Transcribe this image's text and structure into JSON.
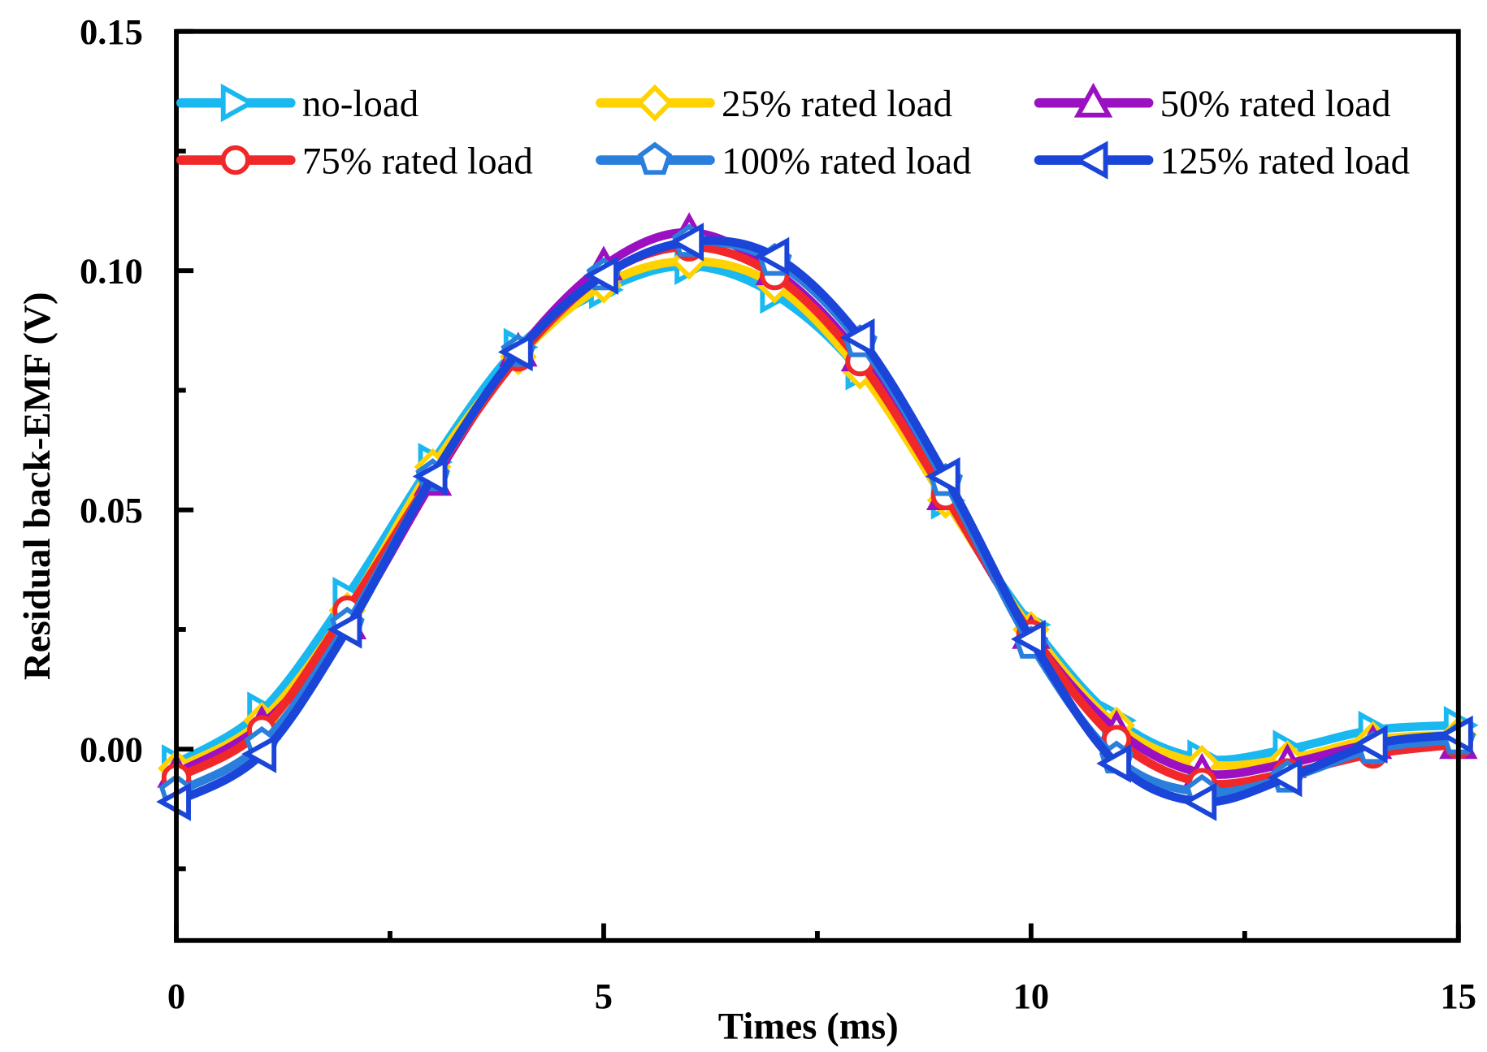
{
  "chart_data": {
    "type": "line",
    "title": "",
    "xlabel": "Times (ms)",
    "ylabel": "Residual back-EMF (V)",
    "xlim": [
      0,
      15
    ],
    "ylim": [
      -0.04,
      0.15
    ],
    "xticks": [
      0,
      5,
      10,
      15
    ],
    "xtick_labels": [
      "0",
      "5",
      "10",
      "15"
    ],
    "yticks": [
      0.0,
      0.05,
      0.1,
      0.15
    ],
    "ytick_labels": [
      "0.00",
      "0.05",
      "0.10",
      "0.15"
    ],
    "grid": false,
    "legend_placement": "top",
    "x": [
      0,
      1,
      2,
      3,
      4,
      5,
      6,
      7,
      8,
      9,
      10,
      11,
      12,
      13,
      14,
      15
    ],
    "series": [
      {
        "name": "no-load",
        "color": "#1ab8f0",
        "marker": "triangle-right",
        "values": [
          -0.003,
          0.008,
          0.032,
          0.06,
          0.084,
          0.096,
          0.101,
          0.095,
          0.079,
          0.052,
          0.026,
          0.006,
          -0.002,
          0.0,
          0.004,
          0.005
        ]
      },
      {
        "name": "25% rated load",
        "color": "#ffd200",
        "marker": "diamond",
        "values": [
          -0.004,
          0.006,
          0.029,
          0.059,
          0.082,
          0.097,
          0.102,
          0.097,
          0.079,
          0.052,
          0.025,
          0.005,
          -0.003,
          -0.002,
          0.002,
          0.003
        ]
      },
      {
        "name": "50% rated load",
        "color": "#9b10c0",
        "marker": "triangle-up",
        "values": [
          -0.005,
          0.005,
          0.026,
          0.056,
          0.083,
          0.101,
          0.108,
          0.1,
          0.082,
          0.053,
          0.024,
          0.004,
          -0.005,
          -0.003,
          0.001,
          0.001
        ]
      },
      {
        "name": "75% rated load",
        "color": "#f0282a",
        "marker": "circle",
        "values": [
          -0.006,
          0.004,
          0.029,
          0.057,
          0.082,
          0.099,
          0.105,
          0.099,
          0.081,
          0.053,
          0.024,
          0.002,
          -0.007,
          -0.005,
          -0.001,
          0.001
        ]
      },
      {
        "name": "100% rated load",
        "color": "#2a7fdc",
        "marker": "pentagon",
        "values": [
          -0.009,
          0.001,
          0.026,
          0.057,
          0.083,
          0.099,
          0.106,
          0.102,
          0.085,
          0.056,
          0.022,
          -0.002,
          -0.009,
          -0.006,
          0.0,
          0.002
        ]
      },
      {
        "name": "125% rated load",
        "color": "#1a45d8",
        "marker": "triangle-left",
        "values": [
          -0.011,
          -0.001,
          0.025,
          0.057,
          0.083,
          0.099,
          0.106,
          0.103,
          0.086,
          0.057,
          0.023,
          -0.003,
          -0.011,
          -0.006,
          0.001,
          0.003
        ]
      }
    ]
  }
}
